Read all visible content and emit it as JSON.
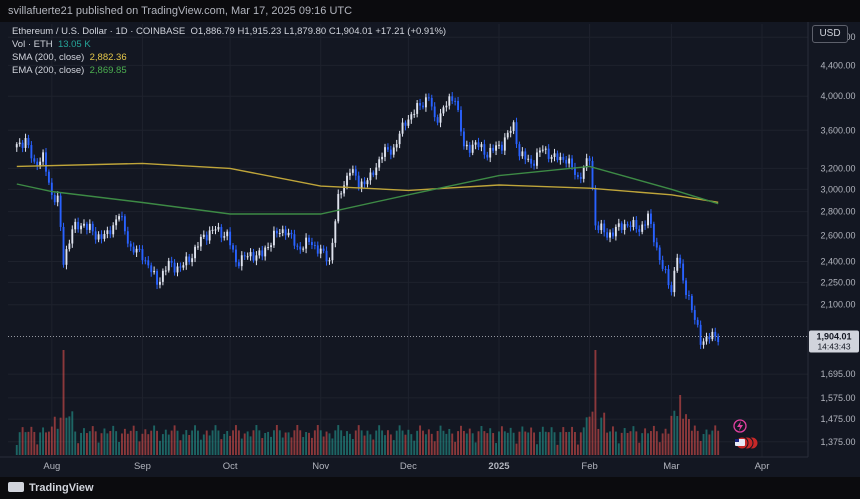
{
  "header": {
    "published": "svillafuerte21 published on TradingView.com, Mar 17, 2025 09:16 UTC"
  },
  "legend": {
    "title": "Ethereum / U.S. Dollar · 1D · COINBASE",
    "ohlc": "O1,886.79  H1,915.23  L1,879.80  C1,904.01  +17.21 (+0.91%)",
    "vol_label": "Vol · ETH",
    "vol_value": "13.05 K",
    "sma_label": "SMA (200, close)",
    "sma_value": "2,882.36",
    "ema_label": "EMA (200, close)",
    "ema_value": "2,869.85"
  },
  "currency_button": "USD",
  "footer": {
    "brand": "TradingView"
  },
  "icons": [
    "flash-icon",
    "flag-icon"
  ],
  "colors": {
    "up": "#dfe3ee",
    "down": "#2962ff",
    "vol_up": "#26a69a",
    "vol_down": "#ef5350",
    "sma": "#bfa53a",
    "ema": "#3d8a45",
    "price_label": "#d1d4dc"
  },
  "chart_data": {
    "type": "candlestick",
    "title": "Ethereum / U.S. Dollar · 1D · COINBASE",
    "y_scale": "log",
    "ylim": [
      1320,
      5000
    ],
    "y_ticks": [
      "4,800.00",
      "4,400.00",
      "4,000.00",
      "3,600.00",
      "3,200.00",
      "3,000.00",
      "2,800.00",
      "2,600.00",
      "2,400.00",
      "2,250.00",
      "2,100.00",
      "1,695.00",
      "1,575.00",
      "1,475.00",
      "1,375.00"
    ],
    "x_ticks": [
      "Aug",
      "Sep",
      "Oct",
      "Nov",
      "Dec",
      "2025",
      "Feb",
      "Mar",
      "Apr"
    ],
    "x_tick_dates": [
      "2024-08-01",
      "2024-09-01",
      "2024-10-01",
      "2024-11-01",
      "2024-12-01",
      "2025-01-01",
      "2025-02-01",
      "2025-03-01",
      "2025-04-01"
    ],
    "last_price": {
      "value": 1904.01,
      "label": "1,904.01",
      "countdown": "14:43:43"
    },
    "close_points": [
      [
        "2024-07-20",
        3450
      ],
      [
        "2024-07-23",
        3480
      ],
      [
        "2024-07-26",
        3250
      ],
      [
        "2024-07-29",
        3300
      ],
      [
        "2024-08-01",
        2950
      ],
      [
        "2024-08-03",
        2900
      ],
      [
        "2024-08-05",
        2400
      ],
      [
        "2024-08-08",
        2650
      ],
      [
        "2024-08-12",
        2700
      ],
      [
        "2024-08-16",
        2600
      ],
      [
        "2024-08-20",
        2600
      ],
      [
        "2024-08-24",
        2780
      ],
      [
        "2024-08-28",
        2500
      ],
      [
        "2024-09-01",
        2450
      ],
      [
        "2024-09-06",
        2250
      ],
      [
        "2024-09-10",
        2380
      ],
      [
        "2024-09-14",
        2350
      ],
      [
        "2024-09-18",
        2450
      ],
      [
        "2024-09-22",
        2600
      ],
      [
        "2024-09-26",
        2650
      ],
      [
        "2024-09-30",
        2600
      ],
      [
        "2024-10-03",
        2400
      ],
      [
        "2024-10-08",
        2450
      ],
      [
        "2024-10-12",
        2450
      ],
      [
        "2024-10-16",
        2600
      ],
      [
        "2024-10-20",
        2650
      ],
      [
        "2024-10-24",
        2500
      ],
      [
        "2024-10-28",
        2550
      ],
      [
        "2024-10-31",
        2500
      ],
      [
        "2024-11-04",
        2400
      ],
      [
        "2024-11-07",
        2900
      ],
      [
        "2024-11-11",
        3200
      ],
      [
        "2024-11-14",
        3050
      ],
      [
        "2024-11-18",
        3100
      ],
      [
        "2024-11-22",
        3350
      ],
      [
        "2024-11-26",
        3400
      ],
      [
        "2024-11-30",
        3700
      ],
      [
        "2024-12-04",
        3850
      ],
      [
        "2024-12-08",
        4000
      ],
      [
        "2024-12-10",
        3700
      ],
      [
        "2024-12-14",
        3900
      ],
      [
        "2024-12-17",
        4000
      ],
      [
        "2024-12-20",
        3400
      ],
      [
        "2024-12-24",
        3450
      ],
      [
        "2024-12-28",
        3350
      ],
      [
        "2025-01-02",
        3450
      ],
      [
        "2025-01-06",
        3650
      ],
      [
        "2025-01-08",
        3350
      ],
      [
        "2025-01-12",
        3250
      ],
      [
        "2025-01-16",
        3400
      ],
      [
        "2025-01-20",
        3300
      ],
      [
        "2025-01-24",
        3300
      ],
      [
        "2025-01-28",
        3100
      ],
      [
        "2025-02-01",
        3300
      ],
      [
        "2025-02-03",
        2700
      ],
      [
        "2025-02-07",
        2600
      ],
      [
        "2025-02-10",
        2650
      ],
      [
        "2025-02-14",
        2700
      ],
      [
        "2025-02-18",
        2650
      ],
      [
        "2025-02-21",
        2750
      ],
      [
        "2025-02-24",
        2500
      ],
      [
        "2025-02-26",
        2350
      ],
      [
        "2025-03-01",
        2200
      ],
      [
        "2025-03-03",
        2450
      ],
      [
        "2025-03-05",
        2250
      ],
      [
        "2025-03-07",
        2150
      ],
      [
        "2025-03-09",
        2000
      ],
      [
        "2025-03-11",
        1880
      ],
      [
        "2025-03-14",
        1900
      ],
      [
        "2025-03-17",
        1904
      ]
    ],
    "sma_200_points": [
      [
        "2024-07-20",
        3220
      ],
      [
        "2024-09-01",
        3250
      ],
      [
        "2024-10-01",
        3200
      ],
      [
        "2024-11-01",
        3030
      ],
      [
        "2024-12-01",
        2990
      ],
      [
        "2025-01-01",
        3040
      ],
      [
        "2025-02-01",
        3010
      ],
      [
        "2025-03-01",
        2950
      ],
      [
        "2025-03-17",
        2882
      ]
    ],
    "ema_200_points": [
      [
        "2024-07-20",
        3050
      ],
      [
        "2024-08-01",
        2980
      ],
      [
        "2024-09-01",
        2880
      ],
      [
        "2024-10-01",
        2780
      ],
      [
        "2024-11-01",
        2780
      ],
      [
        "2024-12-01",
        2950
      ],
      [
        "2025-01-01",
        3130
      ],
      [
        "2025-02-01",
        3220
      ],
      [
        "2025-03-01",
        3000
      ],
      [
        "2025-03-17",
        2870
      ]
    ],
    "volume_peaks": [
      [
        "2024-08-05",
        "high"
      ],
      [
        "2025-02-03",
        "high"
      ],
      [
        "2025-03-04",
        "medium"
      ]
    ]
  }
}
